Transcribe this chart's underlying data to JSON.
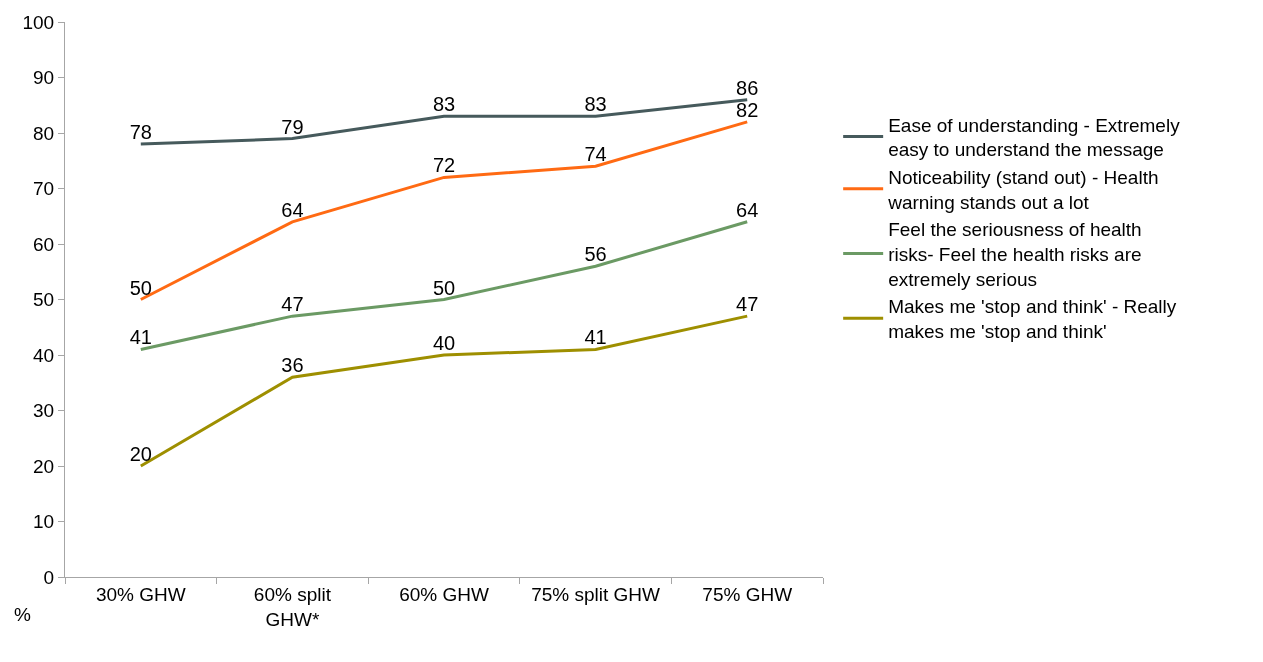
{
  "chart_data": {
    "type": "line",
    "ylabel": "%",
    "categories": [
      "30% GHW",
      "60% split GHW*",
      "60% GHW",
      "75% split GHW",
      "75% GHW"
    ],
    "series": [
      {
        "name": "Ease of understanding - Extremely easy to understand the message",
        "color": "#465a5c",
        "values": [
          78,
          79,
          83,
          83,
          86
        ]
      },
      {
        "name": "Noticeability (stand out) - Health warning stands out a lot",
        "color": "#ff6a13",
        "values": [
          50,
          64,
          72,
          74,
          82
        ]
      },
      {
        "name": "Feel the seriousness of health risks- Feel the health risks are extremely serious",
        "color": "#6b9a64",
        "values": [
          41,
          47,
          50,
          56,
          64
        ]
      },
      {
        "name": "Makes me 'stop and think' - Really makes me 'stop and think'",
        "color": "#9e8f00",
        "values": [
          20,
          36,
          40,
          41,
          47
        ]
      }
    ],
    "ylim": [
      0,
      100
    ],
    "yticks": [
      0,
      10,
      20,
      30,
      40,
      50,
      60,
      70,
      80,
      90,
      100
    ],
    "data_labels": true,
    "legend": "right",
    "marker": "none",
    "line_style": "solid"
  }
}
